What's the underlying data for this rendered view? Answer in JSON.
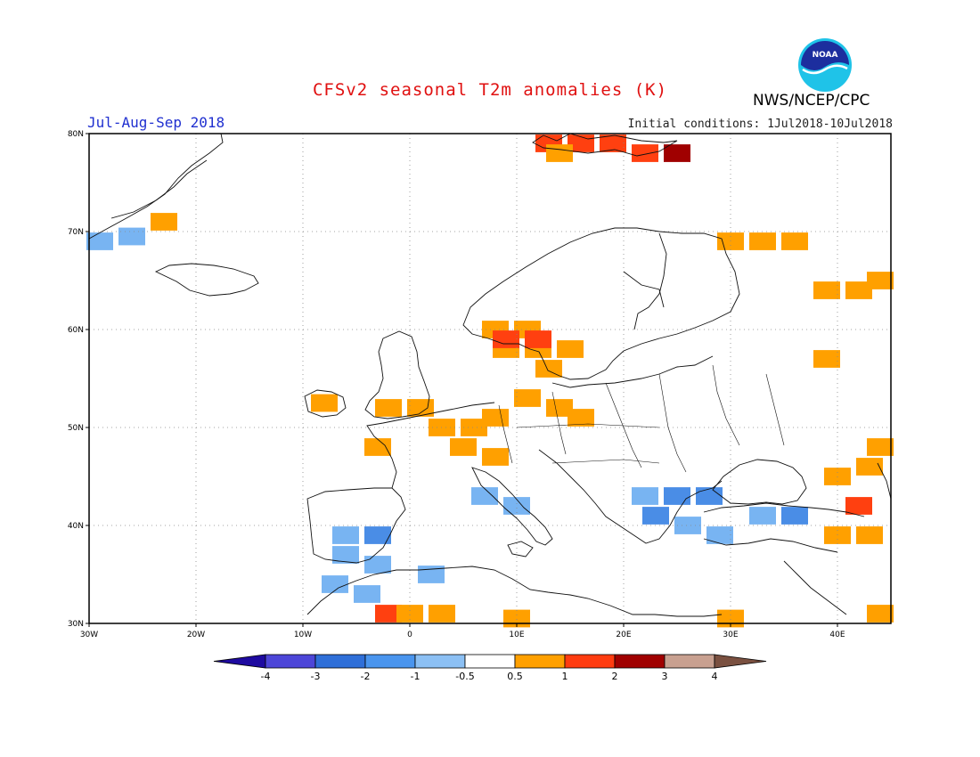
{
  "header": {
    "title": "CFSv2 seasonal T2m anomalies (K)",
    "period": "Jul-Aug-Sep 2018",
    "initial_conditions": "Initial conditions: 1Jul2018-10Jul2018",
    "agency": "NWS/NCEP/CPC",
    "logo_text": "NOAA"
  },
  "map": {
    "lon_range": [
      -30,
      45
    ],
    "lat_range": [
      30,
      80
    ],
    "lon_ticks": [
      "30W",
      "20W",
      "10W",
      "0",
      "10E",
      "20E",
      "30E",
      "40E"
    ],
    "lat_ticks": [
      "30N",
      "40N",
      "50N",
      "60N",
      "70N",
      "80N"
    ],
    "gridlines": true,
    "anomaly_cells": [
      {
        "lon": 13,
        "lat": 79,
        "c": 2
      },
      {
        "lon": 16,
        "lat": 79,
        "c": 2
      },
      {
        "lon": 19,
        "lat": 79,
        "c": 2
      },
      {
        "lon": 22,
        "lat": 78,
        "c": 2
      },
      {
        "lon": 25,
        "lat": 78,
        "c": 3
      },
      {
        "lon": 14,
        "lat": 78,
        "c": 1
      },
      {
        "lon": -23,
        "lat": 71,
        "c": 1
      },
      {
        "lon": -29,
        "lat": 69,
        "c": -1
      },
      {
        "lon": -26,
        "lat": 69.5,
        "c": -1
      },
      {
        "lon": 30,
        "lat": 69,
        "c": 1
      },
      {
        "lon": 33,
        "lat": 69,
        "c": 1
      },
      {
        "lon": 36,
        "lat": 69,
        "c": 1
      },
      {
        "lon": 39,
        "lat": 64,
        "c": 1
      },
      {
        "lon": 42,
        "lat": 64,
        "c": 1
      },
      {
        "lon": 44,
        "lat": 65,
        "c": 1
      },
      {
        "lon": 39,
        "lat": 57,
        "c": 1
      },
      {
        "lon": 8,
        "lat": 60,
        "c": 1
      },
      {
        "lon": 11,
        "lat": 60,
        "c": 1
      },
      {
        "lon": 9,
        "lat": 58,
        "c": 1
      },
      {
        "lon": 12,
        "lat": 58,
        "c": 1
      },
      {
        "lon": 15,
        "lat": 58,
        "c": 1
      },
      {
        "lon": 13,
        "lat": 56,
        "c": 1
      },
      {
        "lon": 9,
        "lat": 59,
        "c": 2
      },
      {
        "lon": 12,
        "lat": 59,
        "c": 2
      },
      {
        "lon": -8,
        "lat": 52.5,
        "c": 1
      },
      {
        "lon": -2,
        "lat": 52,
        "c": 1
      },
      {
        "lon": 1,
        "lat": 52,
        "c": 1
      },
      {
        "lon": 3,
        "lat": 50,
        "c": 1
      },
      {
        "lon": 6,
        "lat": 50,
        "c": 1
      },
      {
        "lon": 8,
        "lat": 51,
        "c": 1
      },
      {
        "lon": 11,
        "lat": 53,
        "c": 1
      },
      {
        "lon": 14,
        "lat": 52,
        "c": 1
      },
      {
        "lon": 16,
        "lat": 51,
        "c": 1
      },
      {
        "lon": 5,
        "lat": 48,
        "c": 1
      },
      {
        "lon": 8,
        "lat": 47,
        "c": 1
      },
      {
        "lon": -3,
        "lat": 48,
        "c": 1
      },
      {
        "lon": 7,
        "lat": 43,
        "c": -1
      },
      {
        "lon": 10,
        "lat": 42,
        "c": -1
      },
      {
        "lon": -6,
        "lat": 39,
        "c": -1
      },
      {
        "lon": -3,
        "lat": 39,
        "c": -2
      },
      {
        "lon": -6,
        "lat": 37,
        "c": -1
      },
      {
        "lon": -3,
        "lat": 36,
        "c": -1
      },
      {
        "lon": -7,
        "lat": 34,
        "c": -1
      },
      {
        "lon": -4,
        "lat": 33,
        "c": -1
      },
      {
        "lon": 2,
        "lat": 35,
        "c": -1
      },
      {
        "lon": -2,
        "lat": 31,
        "c": 2
      },
      {
        "lon": 0,
        "lat": 31,
        "c": 1
      },
      {
        "lon": 3,
        "lat": 31,
        "c": 1
      },
      {
        "lon": 10,
        "lat": 30.5,
        "c": 1
      },
      {
        "lon": 22,
        "lat": 43,
        "c": -1
      },
      {
        "lon": 25,
        "lat": 43,
        "c": -2
      },
      {
        "lon": 28,
        "lat": 43,
        "c": -2
      },
      {
        "lon": 23,
        "lat": 41,
        "c": -2
      },
      {
        "lon": 26,
        "lat": 40,
        "c": -1
      },
      {
        "lon": 29,
        "lat": 39,
        "c": -1
      },
      {
        "lon": 33,
        "lat": 41,
        "c": -1
      },
      {
        "lon": 36,
        "lat": 41,
        "c": -2
      },
      {
        "lon": 40,
        "lat": 45,
        "c": 1
      },
      {
        "lon": 43,
        "lat": 46,
        "c": 1
      },
      {
        "lon": 44,
        "lat": 48,
        "c": 1
      },
      {
        "lon": 42,
        "lat": 42,
        "c": 2
      },
      {
        "lon": 40,
        "lat": 39,
        "c": 1
      },
      {
        "lon": 43,
        "lat": 39,
        "c": 1
      },
      {
        "lon": 30,
        "lat": 30.5,
        "c": 1
      },
      {
        "lon": 44,
        "lat": 31,
        "c": 1
      }
    ]
  },
  "legend": {
    "labels": [
      "-4",
      "-3",
      "-2",
      "-1",
      "-0.5",
      "0.5",
      "1",
      "2",
      "3",
      "4"
    ],
    "colors": [
      "#1e0aa0",
      "#4d46d8",
      "#2f6fd8",
      "#4a95ee",
      "#8cc0f4",
      "#ffffff",
      "#ffa000",
      "#ff3c10",
      "#a00000",
      "#c8a090",
      "#7a5040"
    ]
  },
  "anomaly_colors": {
    "-2": "#4a8de6",
    "-1": "#78b4f2",
    "1": "#ffa000",
    "2": "#ff4010",
    "3": "#a00000"
  }
}
